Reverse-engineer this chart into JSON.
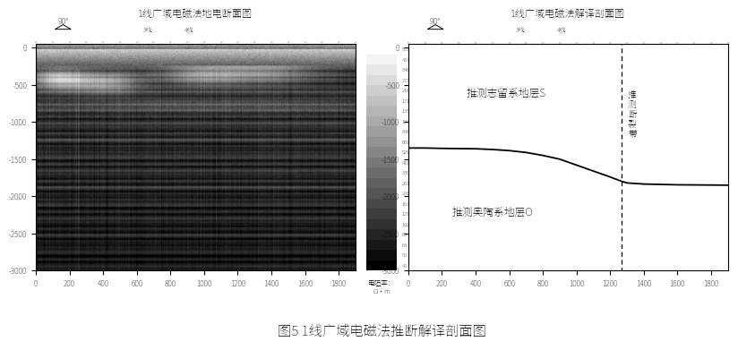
{
  "title_left": "1线广域电磁法地电断面图",
  "title_right": "1线广域电磁法解译剖面图",
  "footer_title": "图5 1线广域电磁法推断解译剖面图",
  "colorbar_label": "电阻率：\nΩ·m",
  "colorbar_values": [
    5535,
    4377,
    3461,
    2736,
    2164,
    1711,
    1353,
    1070,
    846,
    669,
    529,
    418,
    330,
    261,
    206,
    163,
    129,
    102,
    80,
    63,
    50,
    40
  ],
  "xlim": [
    0,
    1900
  ],
  "ylim": [
    -3000,
    50
  ],
  "xticks": [
    0,
    200,
    400,
    600,
    800,
    1000,
    1200,
    1400,
    1600,
    1800
  ],
  "yticks_left": [
    0,
    -500,
    -1000,
    -1500,
    -2000,
    -2500,
    -3000
  ],
  "yticks_right": [
    0,
    -500,
    -1000,
    -1500,
    -2000,
    -2500,
    -3000
  ],
  "label_silurian": "推测志留系地层S",
  "label_ordovician": "推测奥陶系地层O",
  "label_fault": "推\n测\n断\n裂\n带",
  "layer1_x": [
    0,
    100,
    200,
    300,
    400,
    500,
    600,
    700,
    800,
    900,
    1000,
    1100,
    1200,
    1270,
    1300,
    1400,
    1600,
    1900
  ],
  "layer1_y": [
    -1350,
    -1350,
    -1355,
    -1358,
    -1360,
    -1370,
    -1385,
    -1410,
    -1450,
    -1500,
    -1580,
    -1660,
    -1740,
    -1800,
    -1820,
    -1835,
    -1845,
    -1850
  ],
  "fault_x": 1270,
  "angle_label": "90°",
  "bg_color": "#ffffff"
}
